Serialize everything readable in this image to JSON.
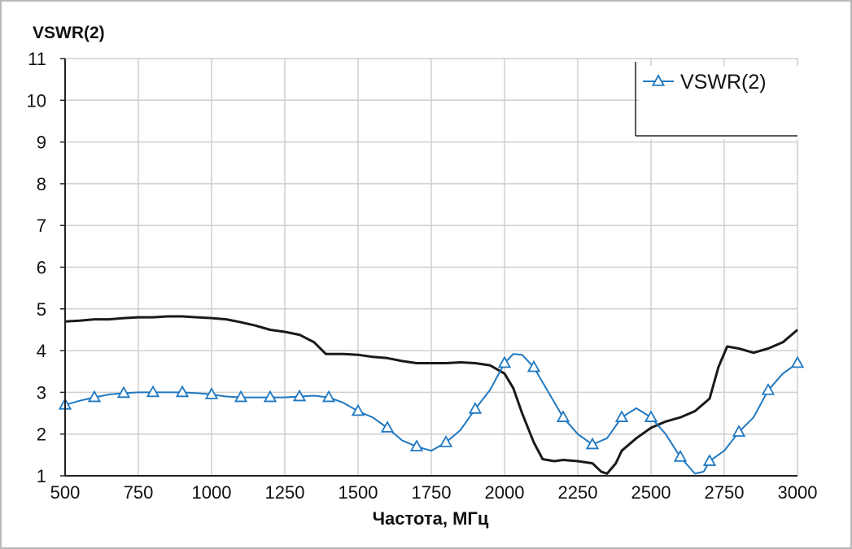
{
  "chart_data": {
    "type": "line",
    "title": "VSWR(2)",
    "xlabel": "Частота, МГц",
    "ylabel": "",
    "xlim": [
      500,
      3000
    ],
    "ylim": [
      1,
      11
    ],
    "xticks": [
      500,
      750,
      1000,
      1250,
      1500,
      1750,
      2000,
      2250,
      2500,
      2750,
      3000
    ],
    "yticks": [
      1,
      2,
      3,
      4,
      5,
      6,
      7,
      8,
      9,
      10,
      11
    ],
    "grid": true,
    "legend_position": "top-right",
    "series": [
      {
        "name": "VSWR(2)",
        "color": "#1f78c1",
        "marker": "triangle",
        "points": [
          [
            500,
            2.7
          ],
          [
            550,
            2.8
          ],
          [
            600,
            2.88
          ],
          [
            650,
            2.95
          ],
          [
            700,
            2.98
          ],
          [
            750,
            3.0
          ],
          [
            800,
            3.0
          ],
          [
            850,
            3.0
          ],
          [
            900,
            3.0
          ],
          [
            950,
            2.98
          ],
          [
            1000,
            2.95
          ],
          [
            1050,
            2.9
          ],
          [
            1100,
            2.88
          ],
          [
            1150,
            2.88
          ],
          [
            1200,
            2.88
          ],
          [
            1250,
            2.88
          ],
          [
            1300,
            2.9
          ],
          [
            1350,
            2.92
          ],
          [
            1400,
            2.88
          ],
          [
            1450,
            2.75
          ],
          [
            1500,
            2.55
          ],
          [
            1550,
            2.4
          ],
          [
            1600,
            2.15
          ],
          [
            1650,
            1.85
          ],
          [
            1700,
            1.7
          ],
          [
            1750,
            1.6
          ],
          [
            1780,
            1.72
          ],
          [
            1800,
            1.8
          ],
          [
            1850,
            2.1
          ],
          [
            1900,
            2.6
          ],
          [
            1950,
            3.05
          ],
          [
            2000,
            3.7
          ],
          [
            2030,
            3.92
          ],
          [
            2060,
            3.9
          ],
          [
            2100,
            3.6
          ],
          [
            2150,
            3.0
          ],
          [
            2200,
            2.4
          ],
          [
            2250,
            2.0
          ],
          [
            2300,
            1.75
          ],
          [
            2350,
            1.9
          ],
          [
            2400,
            2.4
          ],
          [
            2450,
            2.62
          ],
          [
            2500,
            2.4
          ],
          [
            2550,
            2.0
          ],
          [
            2600,
            1.45
          ],
          [
            2650,
            1.05
          ],
          [
            2680,
            1.1
          ],
          [
            2700,
            1.35
          ],
          [
            2750,
            1.6
          ],
          [
            2800,
            2.05
          ],
          [
            2850,
            2.4
          ],
          [
            2900,
            3.05
          ],
          [
            2950,
            3.45
          ],
          [
            3000,
            3.7
          ]
        ],
        "marker_x": [
          500,
          600,
          700,
          800,
          900,
          1000,
          1100,
          1200,
          1300,
          1400,
          1500,
          1600,
          1700,
          1800,
          1900,
          2000,
          2100,
          2200,
          2300,
          2400,
          2500,
          2600,
          2700,
          2800,
          2900,
          3000
        ]
      },
      {
        "name": "",
        "color": "#1a1a1a",
        "marker": "none",
        "points": [
          [
            500,
            4.7
          ],
          [
            550,
            4.72
          ],
          [
            600,
            4.75
          ],
          [
            650,
            4.75
          ],
          [
            700,
            4.78
          ],
          [
            750,
            4.8
          ],
          [
            800,
            4.8
          ],
          [
            850,
            4.82
          ],
          [
            900,
            4.82
          ],
          [
            950,
            4.8
          ],
          [
            1000,
            4.78
          ],
          [
            1050,
            4.75
          ],
          [
            1100,
            4.68
          ],
          [
            1150,
            4.6
          ],
          [
            1200,
            4.5
          ],
          [
            1250,
            4.45
          ],
          [
            1300,
            4.38
          ],
          [
            1350,
            4.2
          ],
          [
            1390,
            3.92
          ],
          [
            1450,
            3.92
          ],
          [
            1500,
            3.9
          ],
          [
            1550,
            3.85
          ],
          [
            1600,
            3.82
          ],
          [
            1650,
            3.75
          ],
          [
            1700,
            3.7
          ],
          [
            1750,
            3.7
          ],
          [
            1800,
            3.7
          ],
          [
            1850,
            3.72
          ],
          [
            1900,
            3.7
          ],
          [
            1950,
            3.65
          ],
          [
            2000,
            3.45
          ],
          [
            2030,
            3.1
          ],
          [
            2060,
            2.5
          ],
          [
            2100,
            1.8
          ],
          [
            2130,
            1.4
          ],
          [
            2170,
            1.35
          ],
          [
            2200,
            1.38
          ],
          [
            2250,
            1.35
          ],
          [
            2300,
            1.3
          ],
          [
            2330,
            1.1
          ],
          [
            2350,
            1.05
          ],
          [
            2380,
            1.3
          ],
          [
            2400,
            1.6
          ],
          [
            2450,
            1.9
          ],
          [
            2500,
            2.15
          ],
          [
            2550,
            2.3
          ],
          [
            2600,
            2.4
          ],
          [
            2650,
            2.55
          ],
          [
            2700,
            2.85
          ],
          [
            2730,
            3.6
          ],
          [
            2760,
            4.1
          ],
          [
            2800,
            4.05
          ],
          [
            2850,
            3.95
          ],
          [
            2900,
            4.05
          ],
          [
            2950,
            4.2
          ],
          [
            3000,
            4.5
          ]
        ]
      }
    ]
  }
}
